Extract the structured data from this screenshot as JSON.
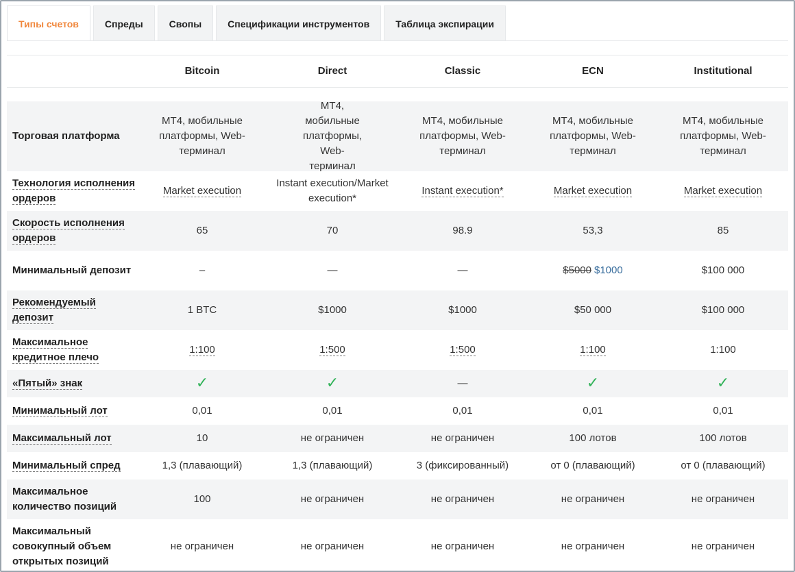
{
  "tabs": [
    "Типы счетов",
    "Спреды",
    "Свопы",
    "Спецификации инструментов",
    "Таблица экспирации"
  ],
  "columns": [
    "Bitcoin",
    "Direct",
    "Classic",
    "ECN",
    "Institutional"
  ],
  "rows": {
    "platform": {
      "label": "Торговая платформа",
      "values": [
        "MT4, мобильные платформы, Web-терминал",
        "MT4, мобильные платформы, Web-терминал",
        "MT4, мобильные платформы, Web-терминал",
        "MT4, мобильные платформы, Web-терминал",
        "MT4, мобильные платформы, Web-терминал"
      ]
    },
    "execution": {
      "label": "Технология исполнения ордеров",
      "values": [
        "Market execution",
        "Instant execution/Market execution*",
        "Instant execution*",
        "Market execution",
        "Market execution"
      ]
    },
    "speed": {
      "label": "Скорость исполнения ордеров",
      "values": [
        "65",
        "70",
        "98.9",
        "53,3",
        "85"
      ]
    },
    "min_deposit": {
      "label": "Минимальный депозит",
      "values": [
        "–",
        "—",
        "—",
        "",
        "$100 000"
      ],
      "ecn_old": "$5000",
      "ecn_new": "$1000"
    },
    "rec_deposit": {
      "label": "Рекомендуемый депозит",
      "values": [
        "1 BTC",
        "$1000",
        "$1000",
        "$50 000",
        "$100 000"
      ]
    },
    "leverage": {
      "label": "Максимальное кредитное плечо",
      "values": [
        "1:100",
        "1:500",
        "1:500",
        "1:100",
        "1:100"
      ]
    },
    "fifth_digit": {
      "label": "«Пятый» знак",
      "check": "✓",
      "dash": "—"
    },
    "min_lot": {
      "label": "Минимальный лот",
      "values": [
        "0,01",
        "0,01",
        "0,01",
        "0,01",
        "0,01"
      ]
    },
    "max_lot": {
      "label": "Максимальный лот",
      "values": [
        "10",
        "не ограничен",
        "не ограничен",
        "100 лотов",
        "100 лотов"
      ]
    },
    "min_spread": {
      "label": "Минимальный спред",
      "values": [
        "1,3 (плавающий)",
        "1,3 (плавающий)",
        "3 (фиксированный)",
        "от 0 (плавающий)",
        "от 0 (плавающий)"
      ]
    },
    "max_positions": {
      "label": "Максимальное количество позиций",
      "values": [
        "100",
        "не ограничен",
        "не ограничен",
        "не ограничен",
        "не ограничен"
      ]
    },
    "max_volume": {
      "label": "Максимальный совокупный объем открытых позиций",
      "values": [
        "не ограничен",
        "не ограничен",
        "не ограничен",
        "не ограничен",
        "не ограничен"
      ]
    }
  },
  "colors": {
    "accent": "#f0883e",
    "check": "#33b35a",
    "link": "#3b6f9e",
    "shade": "#f3f4f5"
  }
}
